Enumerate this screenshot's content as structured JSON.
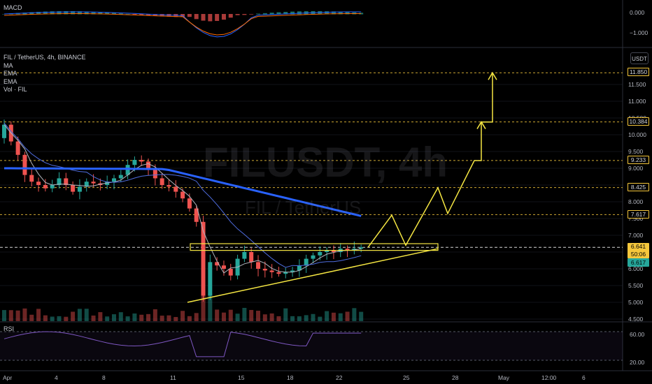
{
  "header": {
    "macd_label": "MACD",
    "rsi_label": "RSI",
    "legend": [
      "FIL / TetherUS, 4h, BINANCE",
      "MA",
      "EMA",
      "EMA",
      "Vol · FIL"
    ],
    "currency_button": "USDT",
    "watermark_symbol": "FILUSDT, 4h",
    "watermark_name": "FIL / TetherUS"
  },
  "colors": {
    "up": "#26a69a",
    "down": "#ef5350",
    "annotation": "#f5e642",
    "level_line": "#f5c73c",
    "ema_long": "#2962ff",
    "ma_short": "#b2b5be",
    "rsi_line": "#7e57c2"
  },
  "price_axis": {
    "ticks": [
      "11.500",
      "11.000",
      "10.500",
      "10.000",
      "9.500",
      "9.000",
      "8.500",
      "8.000",
      "7.500",
      "7.000",
      "6.500",
      "6.000",
      "5.500",
      "5.000",
      "4.500"
    ],
    "tags": {
      "t11850": "11.850",
      "t10384": "10.384",
      "t9233": "9.233",
      "t8425": "8.425",
      "t7617": "7.617",
      "current_price": "6.641",
      "countdown": "50:06",
      "ema_value": "6.617"
    }
  },
  "macd_axis": {
    "ticks": [
      "0.000",
      "−1.000"
    ]
  },
  "rsi_axis": {
    "ticks": [
      "60.00",
      "20.00"
    ]
  },
  "time_axis": {
    "ticks": [
      "Apr",
      "4",
      "8",
      "11",
      "15",
      "18",
      "22",
      "25",
      "28",
      "May",
      "12:00",
      "6"
    ]
  },
  "chart_data": {
    "type": "candlestick",
    "symbol": "FIL / TetherUS",
    "interval": "4h",
    "exchange": "BINANCE",
    "price_range": [
      4.5,
      12.0
    ],
    "key_levels": [
      11.85,
      10.384,
      9.233,
      8.425,
      7.617,
      6.641
    ],
    "current_price": 6.641,
    "ema_value": 6.617,
    "close_path": [
      9.9,
      10.3,
      9.8,
      9.4,
      8.8,
      8.6,
      8.5,
      8.4,
      8.5,
      8.7,
      8.5,
      8.3,
      8.45,
      8.6,
      8.55,
      8.5,
      8.6,
      8.7,
      8.8,
      9.1,
      9.25,
      9.2,
      9.0,
      8.7,
      8.5,
      8.45,
      8.3,
      8.1,
      7.8,
      7.4,
      5.2,
      6.2,
      6.1,
      6.0,
      5.8,
      6.3,
      6.5,
      6.2,
      6.0,
      5.95,
      5.9,
      5.85,
      5.9,
      5.95,
      6.1,
      6.3,
      6.4,
      6.5,
      6.55,
      6.5,
      6.6,
      6.55,
      6.6,
      6.64
    ],
    "projection_path": [
      6.64,
      7.6,
      6.7,
      8.42,
      7.65,
      9.23,
      9.23,
      10.38,
      10.38,
      11.85
    ],
    "rsi_range": [
      20,
      60
    ]
  }
}
